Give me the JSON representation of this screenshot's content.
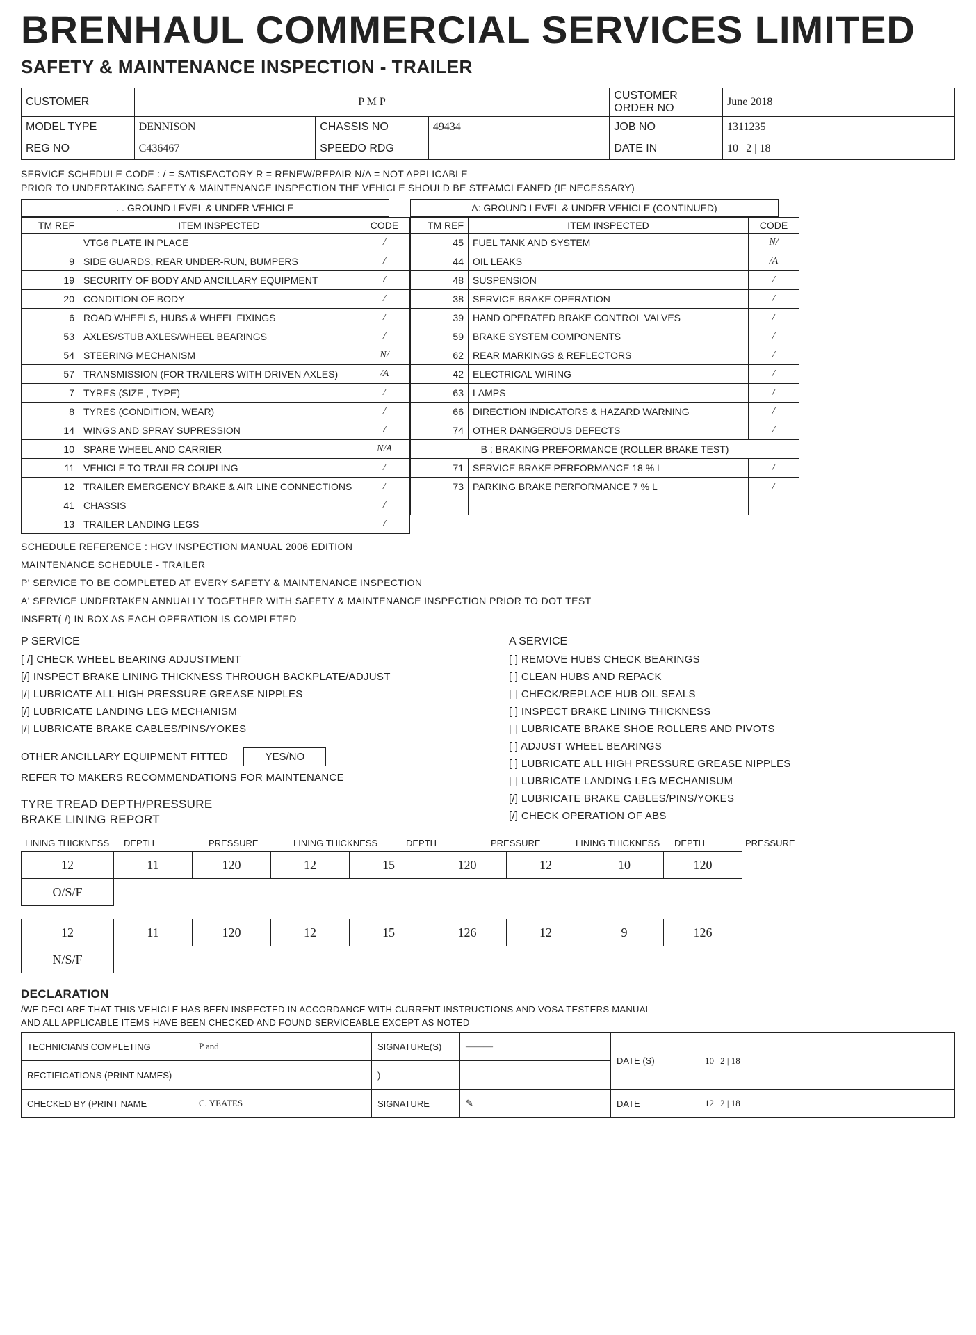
{
  "company": "BRENHAUL COMMERCIAL SERVICES LIMITED",
  "form_title": "SAFETY & MAINTENANCE INSPECTION - TRAILER",
  "header": {
    "customer_lbl": "CUSTOMER",
    "customer_val": "P M P",
    "order_lbl": "CUSTOMER ORDER NO",
    "order_val": "June 2018",
    "model_lbl": "MODEL TYPE",
    "model_val": "DENNISON",
    "chassis_lbl": "CHASSIS NO",
    "chassis_val": "49434",
    "job_lbl": "JOB NO",
    "job_val": "1311235",
    "reg_lbl": "REG NO",
    "reg_val": "C436467",
    "speedo_lbl": "SPEEDO RDG",
    "speedo_val": "",
    "date_lbl": "DATE IN",
    "date_val": "10 | 2 | 18"
  },
  "code_legend": "SERVICE SCHEDULE CODE :   / = SATISFACTORY   R = RENEW/REPAIR   N/A = NOT APPLICABLE",
  "steam_note": "PRIOR TO UNDERTAKING SAFETY & MAINTENANCE INSPECTION THE VEHICLE SHOULD BE STEAMCLEANED (IF NECESSARY)",
  "sectionA_title": ". . GROUND LEVEL & UNDER VEHICLE",
  "sectionA2_title": "A: GROUND LEVEL & UNDER VEHICLE (CONTINUED)",
  "sectionB_title": "B : BRAKING PREFORMANCE (ROLLER BRAKE TEST)",
  "col_hdrs": {
    "tm": "TM REF",
    "item": "ITEM INSPECTED",
    "code": "CODE"
  },
  "left_rows": [
    {
      "tm": "",
      "item": "VTG6 PLATE IN PLACE",
      "code": "/"
    },
    {
      "tm": "9",
      "item": "SIDE GUARDS, REAR UNDER-RUN, BUMPERS",
      "code": "/"
    },
    {
      "tm": "19",
      "item": "SECURITY OF BODY AND ANCILLARY EQUIPMENT",
      "code": "/"
    },
    {
      "tm": "20",
      "item": "CONDITION OF BODY",
      "code": "/"
    },
    {
      "tm": "6",
      "item": "ROAD WHEELS, HUBS & WHEEL FIXINGS",
      "code": "/"
    },
    {
      "tm": "53",
      "item": "AXLES/STUB AXLES/WHEEL BEARINGS",
      "code": "/"
    },
    {
      "tm": "54",
      "item": "STEERING MECHANISM",
      "code": "N/"
    },
    {
      "tm": "57",
      "item": "TRANSMISSION (FOR TRAILERS WITH DRIVEN AXLES)",
      "code": "/A"
    },
    {
      "tm": "7",
      "item": "TYRES (SIZE , TYPE)",
      "code": "/"
    },
    {
      "tm": "8",
      "item": "TYRES (CONDITION, WEAR)",
      "code": "/"
    },
    {
      "tm": "14",
      "item": "WINGS AND SPRAY SUPRESSION",
      "code": "/"
    },
    {
      "tm": "10",
      "item": "SPARE WHEEL AND CARRIER",
      "code": "N/A"
    },
    {
      "tm": "11",
      "item": "VEHICLE TO TRAILER COUPLING",
      "code": "/"
    },
    {
      "tm": "12",
      "item": "TRAILER EMERGENCY BRAKE & AIR LINE CONNECTIONS",
      "code": "/"
    },
    {
      "tm": "41",
      "item": "CHASSIS",
      "code": "/"
    },
    {
      "tm": "13",
      "item": "TRAILER LANDING LEGS",
      "code": "/"
    }
  ],
  "right_rows": [
    {
      "tm": "45",
      "item": "FUEL TANK AND SYSTEM",
      "code": "N/"
    },
    {
      "tm": "44",
      "item": "OIL LEAKS",
      "code": "/A"
    },
    {
      "tm": "48",
      "item": "SUSPENSION",
      "code": "/"
    },
    {
      "tm": "38",
      "item": "SERVICE BRAKE OPERATION",
      "code": "/"
    },
    {
      "tm": "39",
      "item": "HAND OPERATED BRAKE CONTROL VALVES",
      "code": "/"
    },
    {
      "tm": "59",
      "item": "BRAKE SYSTEM COMPONENTS",
      "code": "/"
    },
    {
      "tm": "62",
      "item": "REAR MARKINGS & REFLECTORS",
      "code": "/"
    },
    {
      "tm": "42",
      "item": "ELECTRICAL WIRING",
      "code": "/"
    },
    {
      "tm": "63",
      "item": "LAMPS",
      "code": "/"
    },
    {
      "tm": "66",
      "item": "DIRECTION INDICATORS & HAZARD WARNING",
      "code": "/"
    },
    {
      "tm": "74",
      "item": "OTHER DANGEROUS DEFECTS",
      "code": "/"
    }
  ],
  "brake_rows": [
    {
      "tm": "71",
      "item": "SERVICE BRAKE PERFORMANCE        18   %  L",
      "code": "/"
    },
    {
      "tm": "73",
      "item": "PARKING BRAKE PERFORMANCE        7   %  L",
      "code": "/"
    },
    {
      "tm": "",
      "item": "",
      "code": ""
    }
  ],
  "notes": {
    "ref": "SCHEDULE REFERENCE : HGV INSPECTION MANUAL 2006 EDITION",
    "sched": "MAINTENANCE SCHEDULE - TRAILER",
    "p": "P' SERVICE TO BE COMPLETED AT EVERY SAFETY & MAINTENANCE INSPECTION",
    "a": "A' SERVICE UNDERTAKEN ANNUALLY TOGETHER WITH SAFETY & MAINTENANCE INSPECTION PRIOR TO DOT TEST",
    "ins": "INSERT( /) IN BOX AS EACH OPERATION IS COMPLETED"
  },
  "p_service_title": "P SERVICE",
  "a_service_title": "A SERVICE",
  "p_service": [
    "[ /] CHECK WHEEL BEARING ADJUSTMENT",
    "[/] INSPECT BRAKE LINING THICKNESS THROUGH BACKPLATE/ADJUST",
    "[/] LUBRICATE ALL HIGH PRESSURE GREASE NIPPLES",
    "[/] LUBRICATE LANDING LEG MECHANISM",
    "[/] LUBRICATE BRAKE CABLES/PINS/YOKES"
  ],
  "a_service": [
    "[ ] REMOVE HUBS CHECK BEARINGS",
    "[ ] CLEAN HUBS AND REPACK",
    "[ ] CHECK/REPLACE HUB OIL SEALS",
    "[ ] INSPECT BRAKE LINING THICKNESS",
    "[ ] LUBRICATE BRAKE SHOE ROLLERS AND PIVOTS",
    "[ ] ADJUST WHEEL BEARINGS",
    "[ ] LUBRICATE ALL HIGH PRESSURE GREASE NIPPLES",
    "[ ] LUBRICATE LANDING LEG MECHANISUM",
    "[/] LUBRICATE BRAKE CABLES/PINS/YOKES",
    "[/] CHECK OPERATION OF ABS"
  ],
  "ancillary_lbl": "OTHER ANCILLARY EQUIPMENT FITTED",
  "yesno": "YES/NO",
  "maker_note": "REFER TO MAKERS RECOMMENDATIONS FOR MAINTENANCE",
  "tyre_title1": "TYRE TREAD DEPTH/PRESSURE",
  "tyre_title2": "BRAKE LINING REPORT",
  "lining_hdrs": [
    "LINING THICKNESS",
    "DEPTH",
    "PRESSURE",
    "LINING THICKNESS",
    "DEPTH",
    "PRESSURE",
    "LINING THICKNESS",
    "DEPTH",
    "PRESSURE"
  ],
  "lining_rows": [
    {
      "a": "12",
      "b": "11",
      "c": "120",
      "d": "12",
      "e": "15",
      "f": "120",
      "g": "12",
      "h": "10",
      "i": "120",
      "note": "O/S/F"
    },
    {
      "a": "12",
      "b": "11",
      "c": "120",
      "d": "12",
      "e": "15",
      "f": "126",
      "g": "12",
      "h": "9",
      "i": "126",
      "note": "N/S/F"
    }
  ],
  "declaration": {
    "title": "DECLARATION",
    "line1": "/WE DECLARE THAT THIS VEHICLE HAS BEEN INSPECTED IN ACCORDANCE WITH CURRENT INSTRUCTIONS AND VOSA TESTERS MANUAL",
    "line2": "AND ALL APPLICABLE ITEMS HAVE BEEN CHECKED AND FOUND SERVICEABLE EXCEPT AS NOTED",
    "tech_lbl": "TECHNICIANS COMPLETING",
    "tech_val": "P and",
    "rect_lbl": "RECTIFICATIONS (PRINT NAMES)",
    "rect_val": "",
    "check_lbl": "CHECKED BY (PRINT NAME",
    "check_val": "C. YEATES",
    "sigs_lbl": "SIGNATURE(S)",
    "sig_lbl": "SIGNATURE",
    "dates_lbl": "DATE (S)",
    "date_lbl": "DATE",
    "date1": "10 | 2 | 18",
    "date2": "12 | 2 | 18"
  }
}
